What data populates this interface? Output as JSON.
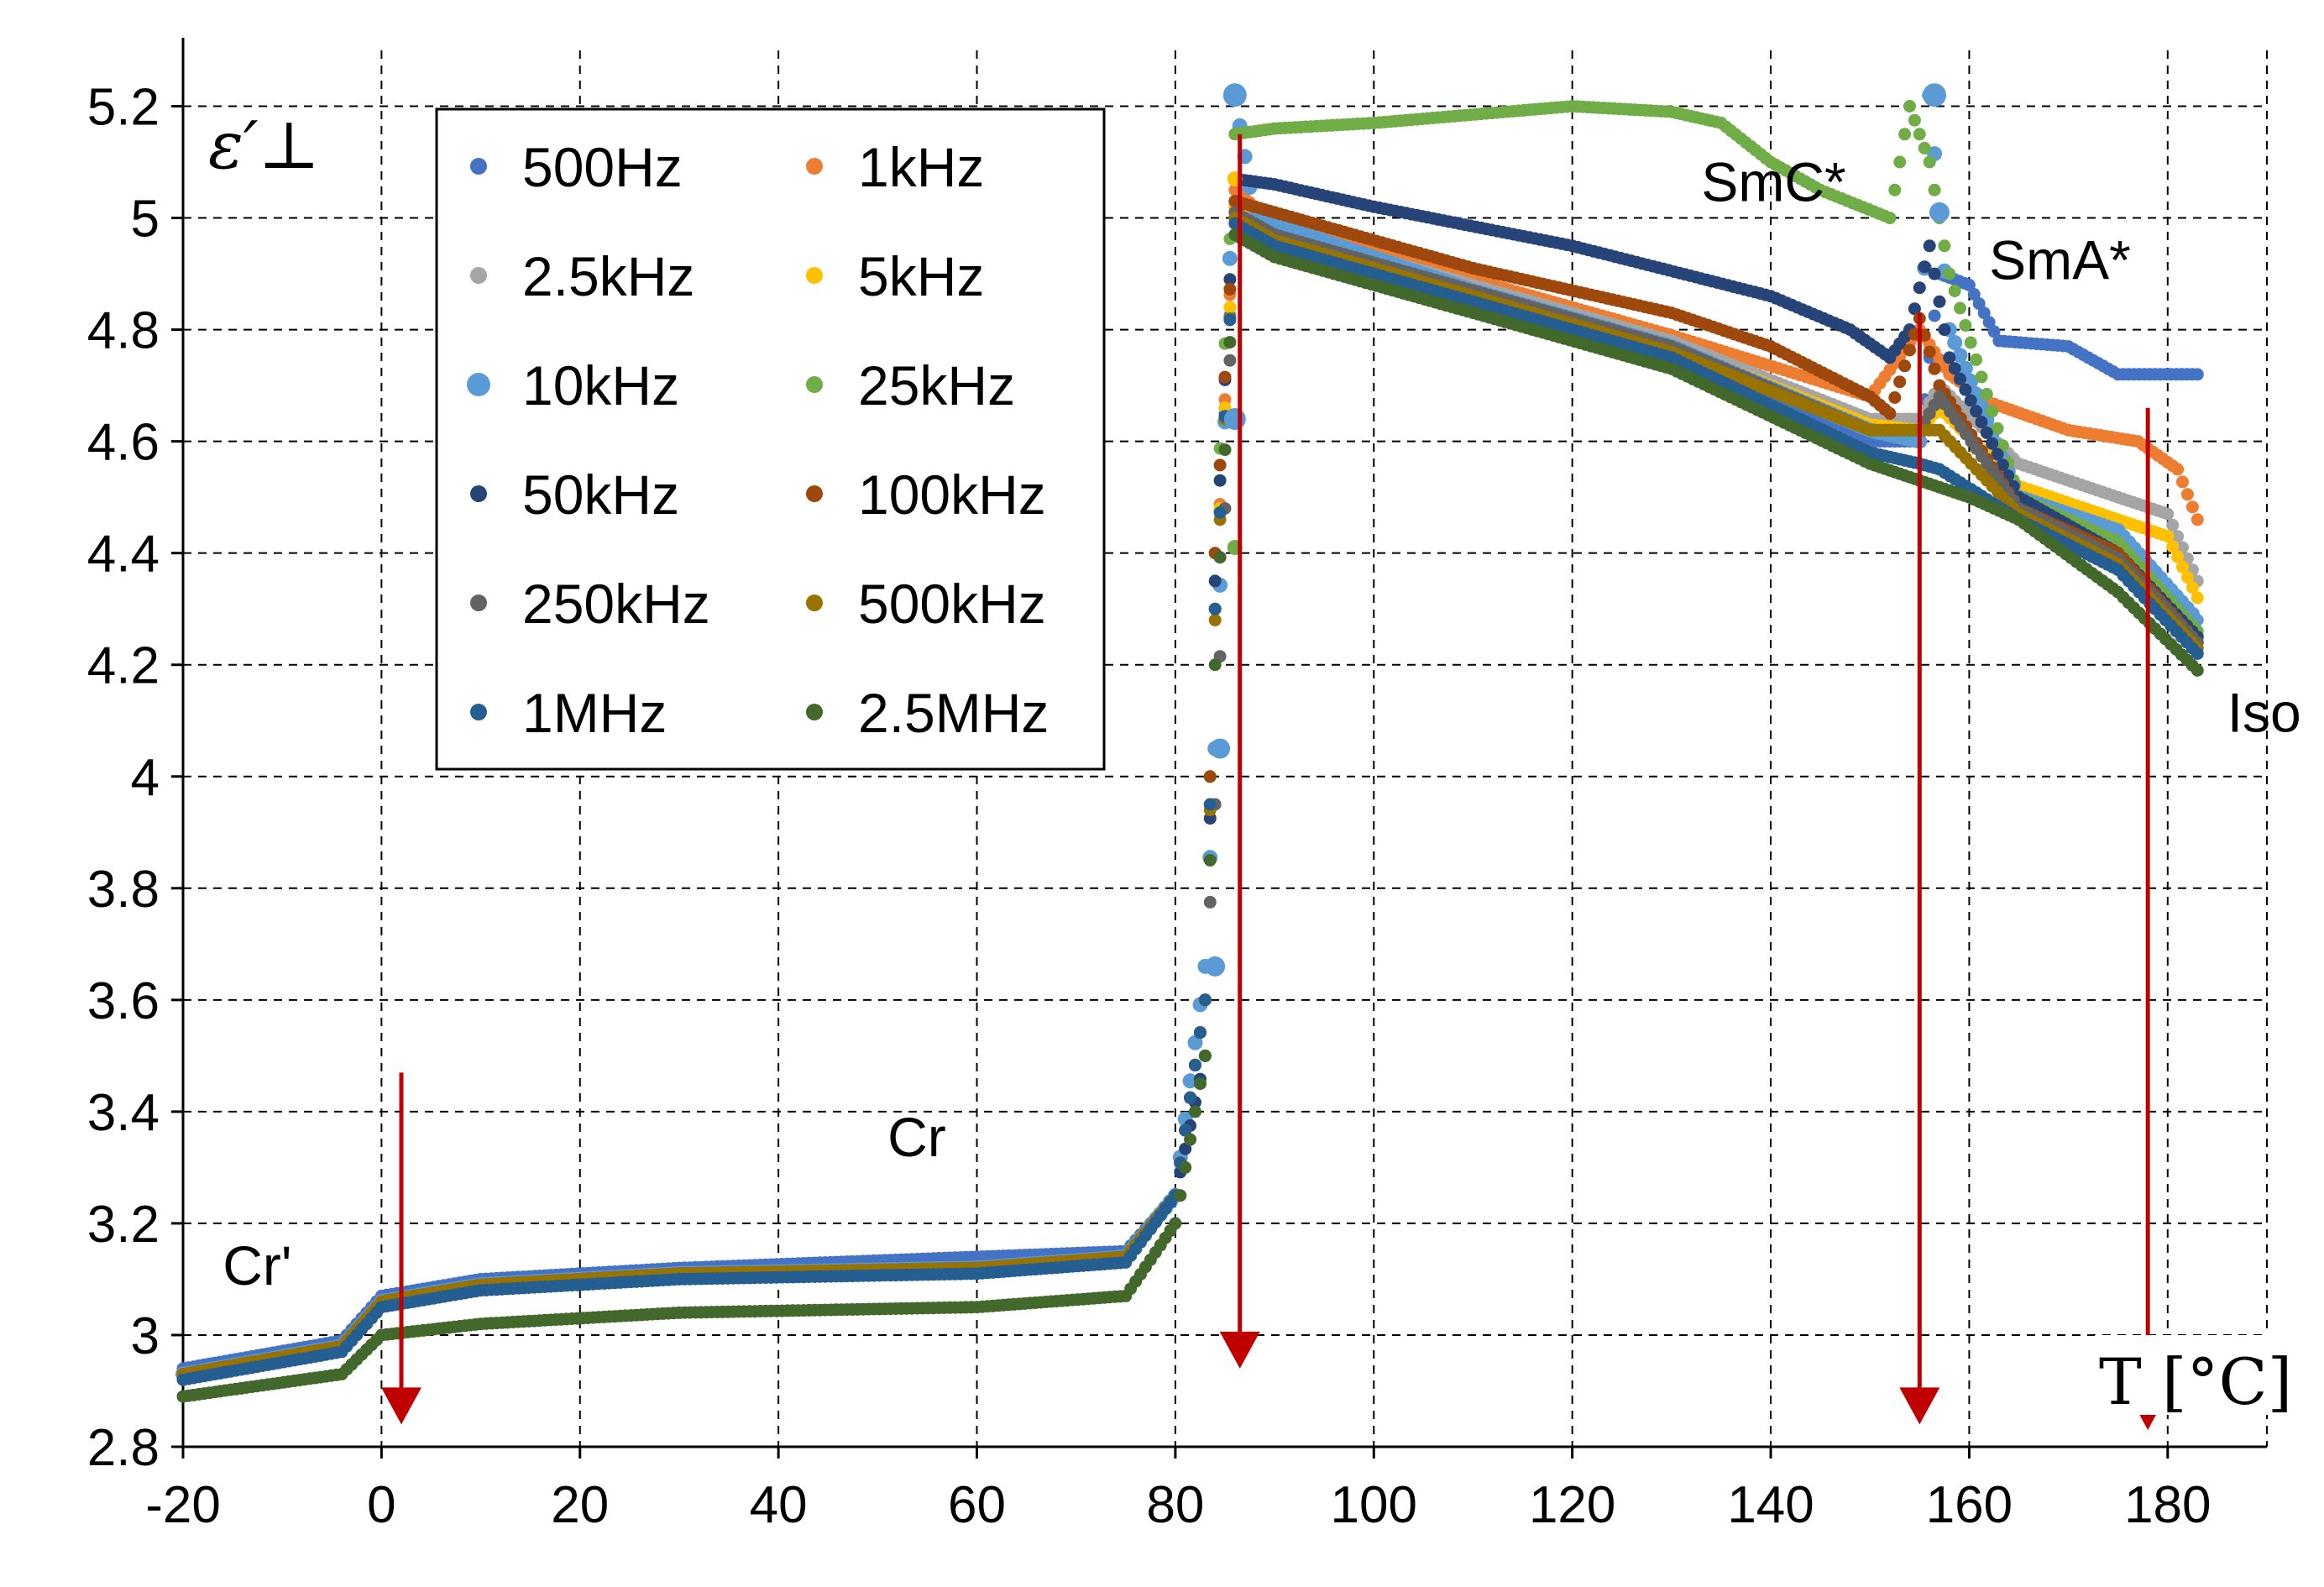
{
  "chart_data": {
    "type": "scatter",
    "title": "",
    "xlabel": "T [°C]",
    "ylabel": "ε′⊥",
    "xlim": [
      -20,
      190
    ],
    "ylim": [
      2.8,
      5.3
    ],
    "xticks": [
      -20,
      0,
      20,
      40,
      60,
      80,
      100,
      120,
      140,
      160,
      180
    ],
    "xtick_labels": [
      "-20",
      "0",
      "20",
      "40",
      "60",
      "80",
      "100",
      "120",
      "140",
      "160",
      "180"
    ],
    "yticks": [
      2.8,
      3.0,
      3.2,
      3.4,
      3.6,
      3.8,
      4.0,
      4.2,
      4.4,
      4.6,
      4.8,
      5.0,
      5.2
    ],
    "ytick_labels": [
      "2.8",
      "3",
      "3.2",
      "3.4",
      "3.6",
      "3.8",
      "4",
      "4.2",
      "4.4",
      "4.6",
      "4.8",
      "5",
      "5.2"
    ],
    "grid": true,
    "legend_position": "top-left",
    "series": [
      {
        "name": "500Hz",
        "color": "#4472c4",
        "points": [
          [
            -20,
            2.94
          ],
          [
            -4,
            2.99
          ],
          [
            0,
            3.07
          ],
          [
            10,
            3.1
          ],
          [
            30,
            3.12
          ],
          [
            60,
            3.14
          ],
          [
            75,
            3.15
          ],
          [
            80,
            3.25
          ],
          [
            83,
            3.6
          ],
          [
            84,
            4.3
          ],
          [
            86,
            5.0
          ],
          [
            90,
            4.95
          ],
          [
            110,
            4.86
          ],
          [
            130,
            4.76
          ],
          [
            150,
            4.6
          ],
          [
            155,
            4.6
          ],
          [
            157,
            4.9
          ],
          [
            160,
            4.88
          ],
          [
            163,
            4.78
          ],
          [
            170,
            4.77
          ],
          [
            175,
            4.72
          ],
          [
            183,
            4.72
          ]
        ]
      },
      {
        "name": "1kHz",
        "color": "#ed7d31",
        "points": [
          [
            -20,
            2.93
          ],
          [
            -4,
            2.98
          ],
          [
            0,
            3.06
          ],
          [
            10,
            3.09
          ],
          [
            30,
            3.11
          ],
          [
            60,
            3.12
          ],
          [
            75,
            3.14
          ],
          [
            80,
            3.25
          ],
          [
            83,
            3.6
          ],
          [
            84,
            4.3
          ],
          [
            86,
            5.05
          ],
          [
            90,
            4.99
          ],
          [
            110,
            4.89
          ],
          [
            130,
            4.79
          ],
          [
            150,
            4.68
          ],
          [
            155,
            4.8
          ],
          [
            158,
            4.72
          ],
          [
            162,
            4.67
          ],
          [
            170,
            4.62
          ],
          [
            177,
            4.6
          ],
          [
            181,
            4.55
          ],
          [
            183,
            4.46
          ]
        ]
      },
      {
        "name": "2.5kHz",
        "color": "#a5a5a5",
        "points": [
          [
            -20,
            2.93
          ],
          [
            -4,
            2.98
          ],
          [
            0,
            3.06
          ],
          [
            10,
            3.09
          ],
          [
            30,
            3.11
          ],
          [
            60,
            3.12
          ],
          [
            75,
            3.14
          ],
          [
            80,
            3.25
          ],
          [
            83,
            3.6
          ],
          [
            84,
            4.3
          ],
          [
            86,
            5.02
          ],
          [
            90,
            4.98
          ],
          [
            110,
            4.88
          ],
          [
            130,
            4.78
          ],
          [
            150,
            4.64
          ],
          [
            155,
            4.64
          ],
          [
            157,
            4.7
          ],
          [
            165,
            4.56
          ],
          [
            175,
            4.5
          ],
          [
            180,
            4.47
          ],
          [
            183,
            4.35
          ]
        ]
      },
      {
        "name": "5kHz",
        "color": "#ffc000",
        "points": [
          [
            -20,
            2.93
          ],
          [
            -4,
            2.98
          ],
          [
            0,
            3.06
          ],
          [
            10,
            3.09
          ],
          [
            30,
            3.11
          ],
          [
            60,
            3.12
          ],
          [
            75,
            3.14
          ],
          [
            80,
            3.25
          ],
          [
            83,
            3.6
          ],
          [
            84,
            4.3
          ],
          [
            86,
            5.02
          ],
          [
            90,
            4.97
          ],
          [
            110,
            4.87
          ],
          [
            130,
            4.77
          ],
          [
            150,
            4.63
          ],
          [
            155,
            4.62
          ],
          [
            157,
            4.66
          ],
          [
            165,
            4.52
          ],
          [
            175,
            4.46
          ],
          [
            180,
            4.43
          ],
          [
            183,
            4.32
          ]
        ]
      },
      {
        "name": "10kHz",
        "color": "#5b9bd5",
        "points": [
          [
            -20,
            2.93
          ],
          [
            -4,
            2.98
          ],
          [
            0,
            3.06
          ],
          [
            10,
            3.09
          ],
          [
            30,
            3.11
          ],
          [
            60,
            3.12
          ],
          [
            75,
            3.14
          ],
          [
            80,
            3.25
          ],
          [
            83,
            3.66
          ],
          [
            84,
            4.05
          ],
          [
            86,
            5.22
          ],
          [
            88,
            5.0
          ],
          [
            110,
            4.87
          ],
          [
            130,
            4.77
          ],
          [
            150,
            4.62
          ],
          [
            155,
            4.6
          ],
          [
            156,
            5.22
          ],
          [
            158,
            4.8
          ],
          [
            165,
            4.5
          ],
          [
            175,
            4.44
          ],
          [
            183,
            4.28
          ]
        ]
      },
      {
        "name": "25kHz",
        "color": "#70ad47",
        "points": [
          [
            -20,
            2.93
          ],
          [
            -4,
            2.98
          ],
          [
            0,
            3.06
          ],
          [
            10,
            3.09
          ],
          [
            30,
            3.11
          ],
          [
            60,
            3.12
          ],
          [
            75,
            3.14
          ],
          [
            80,
            3.25
          ],
          [
            83,
            3.6
          ],
          [
            84,
            4.4
          ],
          [
            86,
            5.15
          ],
          [
            90,
            5.16
          ],
          [
            100,
            5.17
          ],
          [
            120,
            5.2
          ],
          [
            130,
            5.19
          ],
          [
            135,
            5.17
          ],
          [
            140,
            5.1
          ],
          [
            145,
            5.05
          ],
          [
            152,
            5.0
          ],
          [
            154,
            5.2
          ],
          [
            156,
            5.1
          ],
          [
            158,
            4.9
          ],
          [
            165,
            4.5
          ],
          [
            175,
            4.42
          ],
          [
            183,
            4.26
          ]
        ]
      },
      {
        "name": "50kHz",
        "color": "#264478",
        "points": [
          [
            -20,
            2.93
          ],
          [
            -4,
            2.98
          ],
          [
            0,
            3.06
          ],
          [
            10,
            3.09
          ],
          [
            30,
            3.11
          ],
          [
            60,
            3.12
          ],
          [
            75,
            3.14
          ],
          [
            80,
            3.25
          ],
          [
            83,
            3.5
          ],
          [
            84,
            4.35
          ],
          [
            86,
            5.07
          ],
          [
            90,
            5.06
          ],
          [
            100,
            5.02
          ],
          [
            120,
            4.95
          ],
          [
            140,
            4.86
          ],
          [
            148,
            4.8
          ],
          [
            152,
            4.75
          ],
          [
            154,
            4.8
          ],
          [
            156,
            4.95
          ],
          [
            158,
            4.75
          ],
          [
            165,
            4.5
          ],
          [
            175,
            4.4
          ],
          [
            183,
            4.25
          ]
        ]
      },
      {
        "name": "100kHz",
        "color": "#9e480e",
        "points": [
          [
            -20,
            2.93
          ],
          [
            -4,
            2.98
          ],
          [
            0,
            3.06
          ],
          [
            10,
            3.09
          ],
          [
            30,
            3.11
          ],
          [
            60,
            3.12
          ],
          [
            75,
            3.14
          ],
          [
            80,
            3.25
          ],
          [
            83,
            3.6
          ],
          [
            84,
            4.4
          ],
          [
            86,
            5.03
          ],
          [
            90,
            5.01
          ],
          [
            110,
            4.91
          ],
          [
            130,
            4.83
          ],
          [
            140,
            4.77
          ],
          [
            150,
            4.68
          ],
          [
            152,
            4.65
          ],
          [
            155,
            4.82
          ],
          [
            157,
            4.7
          ],
          [
            165,
            4.48
          ],
          [
            175,
            4.4
          ],
          [
            183,
            4.24
          ]
        ]
      },
      {
        "name": "250kHz",
        "color": "#636363",
        "points": [
          [
            -20,
            2.93
          ],
          [
            -4,
            2.98
          ],
          [
            0,
            3.06
          ],
          [
            10,
            3.09
          ],
          [
            30,
            3.11
          ],
          [
            60,
            3.12
          ],
          [
            75,
            3.14
          ],
          [
            80,
            3.25
          ],
          [
            83,
            3.6
          ],
          [
            84,
            3.95
          ],
          [
            86,
            5.01
          ],
          [
            90,
            4.97
          ],
          [
            110,
            4.87
          ],
          [
            130,
            4.77
          ],
          [
            150,
            4.62
          ],
          [
            155,
            4.62
          ],
          [
            157,
            4.68
          ],
          [
            165,
            4.48
          ],
          [
            175,
            4.39
          ],
          [
            183,
            4.24
          ]
        ]
      },
      {
        "name": "500kHz",
        "color": "#997300",
        "points": [
          [
            -20,
            2.93
          ],
          [
            -4,
            2.98
          ],
          [
            0,
            3.06
          ],
          [
            10,
            3.09
          ],
          [
            30,
            3.11
          ],
          [
            60,
            3.12
          ],
          [
            75,
            3.14
          ],
          [
            80,
            3.25
          ],
          [
            83,
            3.6
          ],
          [
            84,
            4.28
          ],
          [
            86,
            5.0
          ],
          [
            90,
            4.96
          ],
          [
            110,
            4.86
          ],
          [
            130,
            4.76
          ],
          [
            150,
            4.62
          ],
          [
            155,
            4.62
          ],
          [
            157,
            4.62
          ],
          [
            165,
            4.47
          ],
          [
            175,
            4.38
          ],
          [
            183,
            4.23
          ]
        ]
      },
      {
        "name": "1MHz",
        "color": "#255e91",
        "points": [
          [
            -20,
            2.92
          ],
          [
            -4,
            2.97
          ],
          [
            0,
            3.05
          ],
          [
            10,
            3.08
          ],
          [
            30,
            3.1
          ],
          [
            60,
            3.11
          ],
          [
            75,
            3.13
          ],
          [
            80,
            3.25
          ],
          [
            83,
            3.6
          ],
          [
            84,
            4.3
          ],
          [
            86,
            4.99
          ],
          [
            90,
            4.95
          ],
          [
            110,
            4.85
          ],
          [
            130,
            4.75
          ],
          [
            150,
            4.58
          ],
          [
            155,
            4.56
          ],
          [
            157,
            4.55
          ],
          [
            165,
            4.46
          ],
          [
            175,
            4.37
          ],
          [
            183,
            4.22
          ]
        ]
      },
      {
        "name": "2.5MHz",
        "color": "#43682b",
        "points": [
          [
            -20,
            2.89
          ],
          [
            -4,
            2.93
          ],
          [
            0,
            3.0
          ],
          [
            10,
            3.02
          ],
          [
            30,
            3.04
          ],
          [
            60,
            3.05
          ],
          [
            75,
            3.07
          ],
          [
            80,
            3.2
          ],
          [
            83,
            3.5
          ],
          [
            84,
            4.2
          ],
          [
            86,
            4.97
          ],
          [
            90,
            4.93
          ],
          [
            110,
            4.83
          ],
          [
            130,
            4.73
          ],
          [
            150,
            4.56
          ],
          [
            155,
            4.53
          ],
          [
            160,
            4.5
          ],
          [
            165,
            4.46
          ],
          [
            175,
            4.33
          ],
          [
            183,
            4.19
          ]
        ]
      }
    ],
    "annotations": [
      {
        "text": "Cr'",
        "x": -16,
        "y": 3.09
      },
      {
        "text": "Cr",
        "x": 51,
        "y": 3.32
      },
      {
        "text": "SmC*",
        "x": 133,
        "y": 5.03
      },
      {
        "text": "SmA*",
        "x": 162,
        "y": 4.89
      },
      {
        "text": "Iso",
        "x": 186,
        "y": 4.08
      }
    ],
    "arrows": [
      {
        "x": 2,
        "from_y": 3.47,
        "to_y": 2.84
      },
      {
        "x": 86.5,
        "from_y": 5.15,
        "to_y": 2.94
      },
      {
        "x": 155,
        "from_y": 4.83,
        "to_y": 2.84
      },
      {
        "x": 178,
        "from_y": 4.66,
        "to_y": 2.83
      }
    ],
    "arrow_color": "#c00000"
  }
}
